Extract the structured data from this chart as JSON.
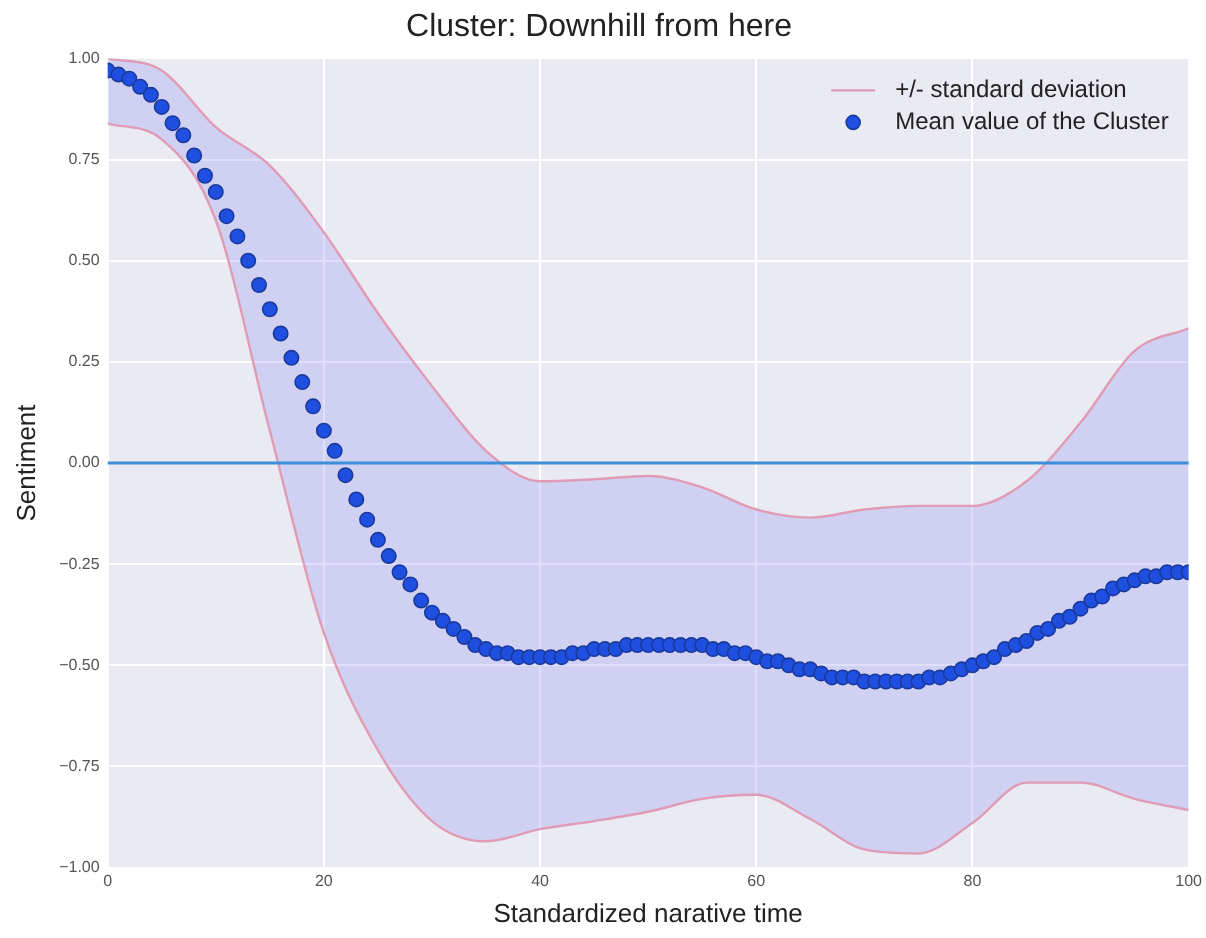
{
  "chart_data": {
    "type": "scatter",
    "title": "Cluster: Downhill from here",
    "xlabel": "Standardized narative time",
    "ylabel": "Sentiment",
    "xlim": [
      0,
      100
    ],
    "xticks": [
      0,
      20,
      40,
      60,
      80,
      100
    ],
    "ylim": [
      -1,
      1
    ],
    "yticks": [
      {
        "value": -1,
        "label": "−1.00"
      },
      {
        "value": -0.75,
        "label": "−0.75"
      },
      {
        "value": -0.5,
        "label": "−0.50"
      },
      {
        "value": -0.25,
        "label": "−0.25"
      },
      {
        "value": 0,
        "label": "0.00"
      },
      {
        "value": 0.25,
        "label": "0.25"
      },
      {
        "value": 0.5,
        "label": "0.50"
      },
      {
        "value": 0.75,
        "label": "0.75"
      },
      {
        "value": 1,
        "label": "1.00"
      }
    ],
    "grid": true,
    "legend": "top right",
    "marker": "circle",
    "ref_lines": [
      {
        "axis": "y",
        "value": 0,
        "color": "#3a8fd8"
      }
    ],
    "series": [
      {
        "name": "+/- standard deviation",
        "type": "line",
        "marker": "none",
        "color": "#e09cb4",
        "x": [
          0,
          5,
          10,
          15,
          20,
          25,
          30,
          35,
          40,
          45,
          50,
          55,
          60,
          65,
          70,
          75,
          80,
          85,
          90,
          95,
          100
        ],
        "values": [
          1.0,
          0.97,
          0.83,
          0.735,
          0.57,
          0.37,
          0.19,
          0.03,
          -0.045,
          -0.04,
          -0.032,
          -0.06,
          -0.115,
          -0.135,
          -0.115,
          -0.106,
          -0.106,
          -0.045,
          0.1,
          0.277,
          0.333
        ],
        "upper": [
          1.0,
          0.97,
          0.83,
          0.735,
          0.57,
          0.37,
          0.19,
          0.03,
          -0.045,
          -0.04,
          -0.032,
          -0.06,
          -0.115,
          -0.135,
          -0.115,
          -0.106,
          -0.106,
          -0.045,
          0.1,
          0.277,
          0.333
        ],
        "lower": [
          0.839,
          0.8,
          0.6,
          0.08,
          -0.42,
          -0.71,
          -0.885,
          -0.935,
          -0.905,
          -0.885,
          -0.862,
          -0.83,
          -0.82,
          -0.88,
          -0.955,
          -0.965,
          -0.89,
          -0.79,
          -0.79,
          -0.83,
          -0.858
        ]
      },
      {
        "type": "line",
        "marker": "none",
        "color": "#e09cb4",
        "x": [
          0,
          5,
          10,
          15,
          20,
          25,
          30,
          35,
          40,
          45,
          50,
          55,
          60,
          65,
          70,
          75,
          80,
          85,
          90,
          95,
          100
        ],
        "values": [
          0.839,
          0.8,
          0.6,
          0.08,
          -0.42,
          -0.71,
          -0.885,
          -0.935,
          -0.905,
          -0.885,
          -0.862,
          -0.83,
          -0.82,
          -0.88,
          -0.955,
          -0.965,
          -0.89,
          -0.79,
          -0.79,
          -0.83,
          -0.858
        ]
      },
      {
        "name": "Mean value of the Cluster",
        "color": "#1f4fe0",
        "x": [
          0,
          1,
          2,
          3,
          4,
          5,
          6,
          7,
          8,
          9,
          10,
          11,
          12,
          13,
          14,
          15,
          16,
          17,
          18,
          19,
          20,
          21,
          22,
          23,
          24,
          25,
          26,
          27,
          28,
          29,
          30,
          31,
          32,
          33,
          34,
          35,
          36,
          37,
          38,
          39,
          40,
          41,
          42,
          43,
          44,
          45,
          46,
          47,
          48,
          49,
          50,
          51,
          52,
          53,
          54,
          55,
          56,
          57,
          58,
          59,
          60,
          61,
          62,
          63,
          64,
          65,
          66,
          67,
          68,
          69,
          70,
          71,
          72,
          73,
          74,
          75,
          76,
          77,
          78,
          79,
          80,
          81,
          82,
          83,
          84,
          85,
          86,
          87,
          88,
          89,
          90,
          91,
          92,
          93,
          94,
          95,
          96,
          97,
          98,
          99,
          100
        ],
        "values": [
          0.97,
          0.96,
          0.95,
          0.93,
          0.91,
          0.88,
          0.84,
          0.81,
          0.76,
          0.71,
          0.67,
          0.61,
          0.56,
          0.5,
          0.44,
          0.38,
          0.32,
          0.26,
          0.2,
          0.14,
          0.08,
          0.03,
          -0.03,
          -0.09,
          -0.14,
          -0.19,
          -0.23,
          -0.27,
          -0.3,
          -0.34,
          -0.37,
          -0.39,
          -0.41,
          -0.43,
          -0.45,
          -0.46,
          -0.47,
          -0.47,
          -0.48,
          -0.48,
          -0.48,
          -0.48,
          -0.48,
          -0.47,
          -0.47,
          -0.46,
          -0.46,
          -0.46,
          -0.45,
          -0.45,
          -0.45,
          -0.45,
          -0.45,
          -0.45,
          -0.45,
          -0.45,
          -0.46,
          -0.46,
          -0.47,
          -0.47,
          -0.48,
          -0.49,
          -0.49,
          -0.5,
          -0.51,
          -0.51,
          -0.52,
          -0.53,
          -0.53,
          -0.53,
          -0.54,
          -0.54,
          -0.54,
          -0.54,
          -0.54,
          -0.54,
          -0.53,
          -0.53,
          -0.52,
          -0.51,
          -0.5,
          -0.49,
          -0.48,
          -0.46,
          -0.45,
          -0.44,
          -0.42,
          -0.41,
          -0.39,
          -0.38,
          -0.36,
          -0.34,
          -0.33,
          -0.31,
          -0.3,
          -0.29,
          -0.28,
          -0.28,
          -0.27,
          -0.27,
          -0.27
        ]
      }
    ]
  }
}
